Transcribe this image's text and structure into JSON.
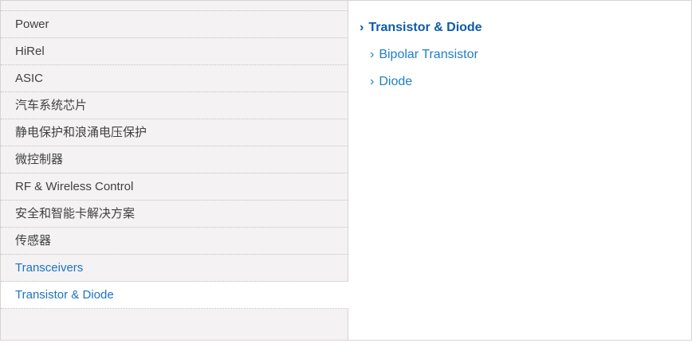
{
  "left_menu": {
    "items": [
      {
        "id": "power",
        "label": "Power",
        "state": "default"
      },
      {
        "id": "hirel",
        "label": "HiRel",
        "state": "default"
      },
      {
        "id": "asic",
        "label": "ASIC",
        "state": "default"
      },
      {
        "id": "automotive",
        "label": "汽车系统芯片",
        "state": "default"
      },
      {
        "id": "esd-surge",
        "label": "静电保护和浪涌电压保护",
        "state": "default"
      },
      {
        "id": "microcontroller",
        "label": "微控制器",
        "state": "default"
      },
      {
        "id": "rf-wireless",
        "label": "RF & Wireless Control",
        "state": "default"
      },
      {
        "id": "security-smartcard",
        "label": "安全和智能卡解决方案",
        "state": "default"
      },
      {
        "id": "sensors",
        "label": "传感器",
        "state": "default"
      },
      {
        "id": "transceivers",
        "label": "Transceivers",
        "state": "link"
      },
      {
        "id": "transistor-diode",
        "label": "Transistor & Diode",
        "state": "selected"
      }
    ]
  },
  "submenu": {
    "chevron": "›",
    "parent": {
      "label": "Transistor & Diode"
    },
    "children": [
      {
        "id": "bipolar-transistor",
        "label": "Bipolar Transistor"
      },
      {
        "id": "diode",
        "label": "Diode"
      }
    ]
  },
  "colors": {
    "panel_background": "#f4f2f2",
    "panel_border": "#d8d3d3",
    "dotted_separator": "#c3bfbf",
    "item_text": "#414141",
    "link_blue": "#1a74c2",
    "parent_link_blue": "#0c5ca8",
    "child_link_blue": "#1e7ec9"
  }
}
